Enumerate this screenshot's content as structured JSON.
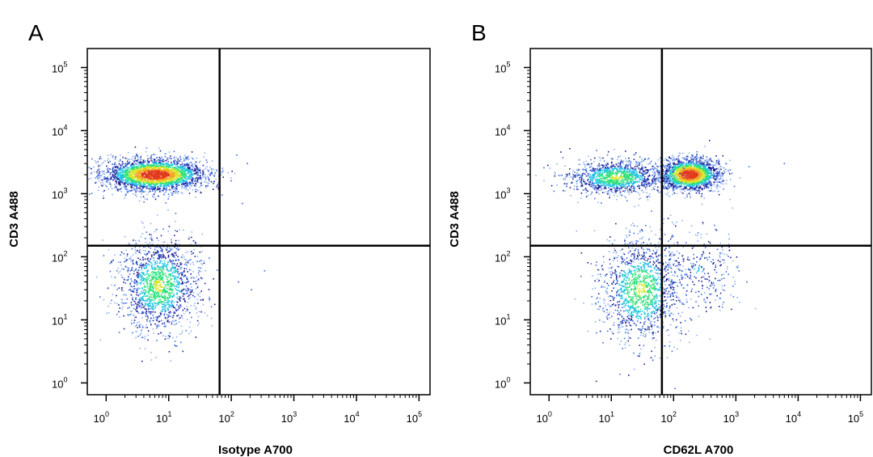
{
  "colors": {
    "background": "#ffffff",
    "frame": "#000000",
    "gate": "#000000",
    "density_scale": [
      "#1a1a8c",
      "#3d6fe0",
      "#8fb0f0",
      "#21c4e0",
      "#2ee07a",
      "#d8e62a",
      "#f5a623",
      "#e23a1e"
    ]
  },
  "chart_data": [
    {
      "type": "scatter",
      "subtype": "flow-cytometry-density-dot-plot",
      "panel_label": "A",
      "title": "",
      "xlabel": "Isotype A700",
      "ylabel": "CD3 A488",
      "x_scale": "log",
      "y_scale": "log",
      "xlim": [
        0.5,
        150000
      ],
      "ylim": [
        0.65,
        200000
      ],
      "x_ticks": [
        {
          "base": "10",
          "exp": "0",
          "value": 1
        },
        {
          "base": "10",
          "exp": "1",
          "value": 10
        },
        {
          "base": "10",
          "exp": "2",
          "value": 100
        },
        {
          "base": "10",
          "exp": "3",
          "value": 1000
        },
        {
          "base": "10",
          "exp": "4",
          "value": 10000
        },
        {
          "base": "10",
          "exp": "5",
          "value": 100000
        }
      ],
      "y_ticks": [
        {
          "base": "10",
          "exp": "0",
          "value": 1
        },
        {
          "base": "10",
          "exp": "1",
          "value": 10
        },
        {
          "base": "10",
          "exp": "2",
          "value": 100
        },
        {
          "base": "10",
          "exp": "3",
          "value": 1000
        },
        {
          "base": "10",
          "exp": "4",
          "value": 10000
        },
        {
          "base": "10",
          "exp": "5",
          "value": 100000
        }
      ],
      "quadrant_gate": {
        "x": 65,
        "y": 150
      },
      "grid": false,
      "populations": [
        {
          "center": [
            6,
            2000
          ],
          "spread_log10": [
            0.42,
            0.13
          ],
          "events": 2600,
          "density": "high"
        },
        {
          "center": [
            7,
            35
          ],
          "spread_log10": [
            0.32,
            0.38
          ],
          "events": 1500,
          "density": "medium"
        }
      ],
      "outliers": [
        [
          130,
          40
        ],
        [
          340,
          60
        ],
        [
          210,
          30
        ],
        [
          100,
          1600
        ],
        [
          180,
          3000
        ],
        [
          150,
          700
        ]
      ]
    },
    {
      "type": "scatter",
      "subtype": "flow-cytometry-density-dot-plot",
      "panel_label": "B",
      "title": "",
      "xlabel": "CD62L A700",
      "ylabel": "CD3 A488",
      "x_scale": "log",
      "y_scale": "log",
      "xlim": [
        0.5,
        150000
      ],
      "ylim": [
        0.65,
        200000
      ],
      "x_ticks": [
        {
          "base": "10",
          "exp": "0",
          "value": 1
        },
        {
          "base": "10",
          "exp": "1",
          "value": 10
        },
        {
          "base": "10",
          "exp": "2",
          "value": 100
        },
        {
          "base": "10",
          "exp": "3",
          "value": 1000
        },
        {
          "base": "10",
          "exp": "4",
          "value": 10000
        },
        {
          "base": "10",
          "exp": "5",
          "value": 100000
        }
      ],
      "y_ticks": [
        {
          "base": "10",
          "exp": "0",
          "value": 1
        },
        {
          "base": "10",
          "exp": "1",
          "value": 10
        },
        {
          "base": "10",
          "exp": "2",
          "value": 100
        },
        {
          "base": "10",
          "exp": "3",
          "value": 1000
        },
        {
          "base": "10",
          "exp": "4",
          "value": 10000
        },
        {
          "base": "10",
          "exp": "5",
          "value": 100000
        }
      ],
      "quadrant_gate": {
        "x": 65,
        "y": 150
      },
      "grid": false,
      "populations": [
        {
          "center": [
            180,
            2000
          ],
          "spread_log10": [
            0.25,
            0.13
          ],
          "events": 1900,
          "density": "high"
        },
        {
          "center": [
            12,
            1800
          ],
          "spread_log10": [
            0.4,
            0.14
          ],
          "events": 1200,
          "density": "medium"
        },
        {
          "center": [
            30,
            30
          ],
          "spread_log10": [
            0.33,
            0.42
          ],
          "events": 1300,
          "density": "medium"
        },
        {
          "center": [
            250,
            60
          ],
          "spread_log10": [
            0.35,
            0.35
          ],
          "events": 300,
          "density": "low"
        }
      ],
      "outliers": [
        [
          6000,
          3000
        ],
        [
          2000,
          150
        ],
        [
          1500,
          40
        ]
      ]
    }
  ]
}
